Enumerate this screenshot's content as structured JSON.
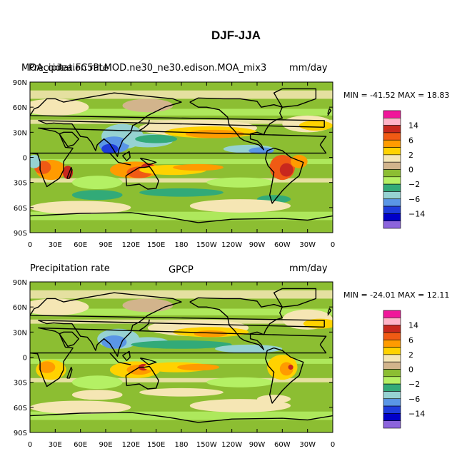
{
  "figure_title": "DJF-JJA",
  "colors": {
    "levels": [
      "#f0169a",
      "#ffb4c8",
      "#c8281e",
      "#f05a14",
      "#ff9b00",
      "#ffd200",
      "#f5e6b4",
      "#d2b48c",
      "#8cbe32",
      "#b4f064",
      "#32aa78",
      "#96d2d2",
      "#5a96e6",
      "#1e3cdc",
      "#0000c8",
      "#8c64dc"
    ],
    "ocean": "#8cbe32",
    "tan": "#f5e6b4",
    "dark_tan": "#d2b48c",
    "yellow": "#ffd200",
    "orange": "#ff9b00",
    "red_orange": "#f05a14",
    "red": "#c8281e",
    "light_green": "#b4f064",
    "teal": "#32aa78",
    "light_blue": "#96d2d2",
    "blue": "#5a96e6",
    "dark_blue": "#1e3cdc"
  },
  "chart_data": [
    {
      "type": "heatmap",
      "left_label": "MOA_cidea.FC5PLMOD.ne30_ne30.edison.MOA_mix3",
      "center_label": "Precipitation rate",
      "right_label": "mm/day",
      "overlap_note": "left, center and right labels overlap in the original rendering",
      "min_max_text": "MIN = -41.52 MAX =  18.83",
      "min": -41.52,
      "max": 18.83,
      "x_tick_labels": [
        "0",
        "30E",
        "60E",
        "90E",
        "120E",
        "150E",
        "180",
        "150W",
        "120W",
        "90W",
        "60W",
        "30W",
        "0"
      ],
      "y_tick_labels": [
        "90N",
        "60N",
        "30N",
        "0",
        "30S",
        "60S",
        "90S"
      ],
      "colorbar_labels": [
        "14",
        "6",
        "2",
        "0",
        "-2",
        "-6",
        "-14"
      ],
      "field_description": "DJF minus JJA precipitation difference, model"
    },
    {
      "type": "heatmap",
      "left_label": "Precipitation rate",
      "center_label": "GPCP",
      "right_label": "mm/day",
      "min_max_text": "MIN = -24.01 MAX =  12.11",
      "min": -24.01,
      "max": 12.11,
      "x_tick_labels": [
        "0",
        "30E",
        "60E",
        "90E",
        "120E",
        "150E",
        "180",
        "150W",
        "120W",
        "90W",
        "60W",
        "30W",
        "0"
      ],
      "y_tick_labels": [
        "90N",
        "60N",
        "30N",
        "0",
        "30S",
        "60S",
        "90S"
      ],
      "colorbar_labels": [
        "14",
        "6",
        "2",
        "0",
        "-2",
        "-6",
        "-14"
      ],
      "field_description": "DJF minus JJA precipitation difference, observations"
    }
  ]
}
